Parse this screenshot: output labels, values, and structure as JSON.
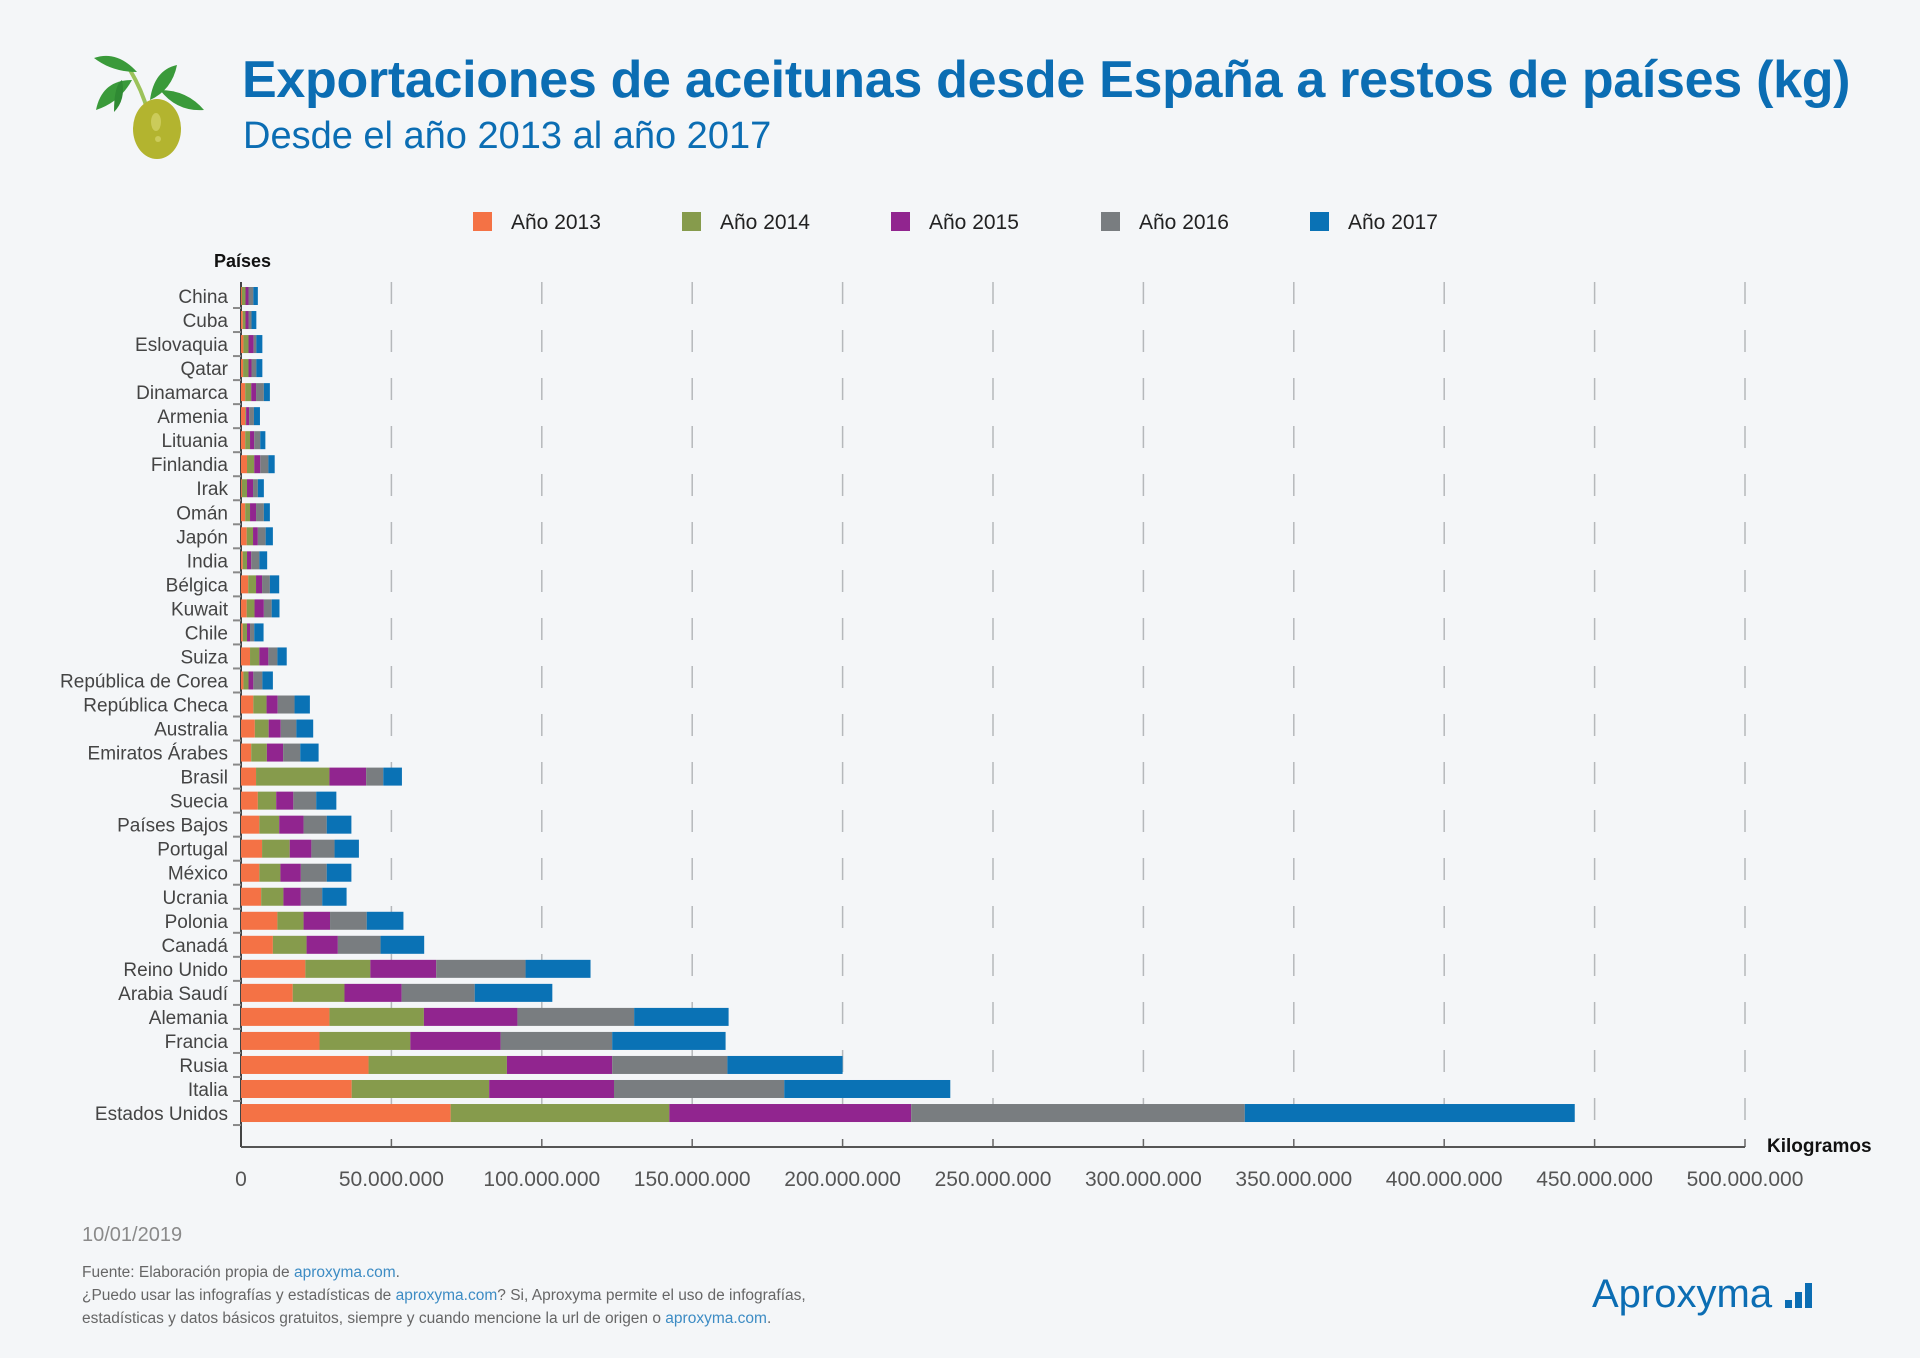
{
  "header": {
    "title": "Exportaciones de aceitunas desde España a restos de países (kg)",
    "subtitle": "Desde el año 2013 al año 2017"
  },
  "chart_data": {
    "type": "bar",
    "orientation": "horizontal",
    "stacked": true,
    "ylabel": "Países",
    "xlabel": "Kilogramos",
    "xlim": [
      0,
      500000000
    ],
    "xticks": [
      0,
      50000000,
      100000000,
      150000000,
      200000000,
      250000000,
      300000000,
      350000000,
      400000000,
      450000000,
      500000000
    ],
    "xtick_labels": [
      "0",
      "50.000.000",
      "100.000.000",
      "150.000.000",
      "200.000.000",
      "250.000.000",
      "300.000.000",
      "350.000.000",
      "400.000.000",
      "450.000.000",
      "500.000.000"
    ],
    "grid": "vertical dashed",
    "legend_position": "top",
    "categories": [
      "China",
      "Cuba",
      "Eslovaquia",
      "Qatar",
      "Dinamarca",
      "Armenia",
      "Lituania",
      "Finlandia",
      "Irak",
      "Omán",
      "Japón",
      "India",
      "Bélgica",
      "Kuwait",
      "Chile",
      "Suiza",
      "República de Corea",
      "República Checa",
      "Australia",
      "Emiratos Árabes",
      "Brasil",
      "Suecia",
      "Países Bajos",
      "Portugal",
      "México",
      "Ucrania",
      "Polonia",
      "Canadá",
      "Reino Unido",
      "Arabia Saudí",
      "Alemania",
      "Francia",
      "Rusia",
      "Italia",
      "Estados Unidos"
    ],
    "series": [
      {
        "name": "Año 2013",
        "color": "#f47245",
        "values": [
          300000,
          600000,
          800000,
          700000,
          1400000,
          1400000,
          1400000,
          2000000,
          300000,
          1400000,
          1900000,
          600000,
          2400000,
          1900000,
          600000,
          3000000,
          800000,
          4100000,
          4600000,
          3400000,
          5000000,
          5600000,
          6100000,
          7000000,
          6100000,
          6700000,
          12100000,
          10600000,
          21400000,
          17200000,
          29400000,
          26100000,
          42400000,
          36800000,
          69700000
        ]
      },
      {
        "name": "Año 2014",
        "color": "#869b4c",
        "values": [
          1200000,
          900000,
          1700000,
          1800000,
          2000000,
          300000,
          1600000,
          2400000,
          1700000,
          1600000,
          2100000,
          1400000,
          2600000,
          2600000,
          1400000,
          3100000,
          1700000,
          4400000,
          4600000,
          5200000,
          24400000,
          6100000,
          6600000,
          9200000,
          7000000,
          7400000,
          8700000,
          11200000,
          21600000,
          17200000,
          31400000,
          30200000,
          46000000,
          45700000,
          72700000
        ]
      },
      {
        "name": "Año 2015",
        "color": "#91258f",
        "values": [
          1000000,
          1000000,
          1700000,
          1000000,
          1600000,
          1000000,
          1400000,
          2000000,
          2000000,
          2000000,
          1600000,
          1400000,
          2000000,
          3100000,
          1000000,
          3000000,
          1600000,
          3700000,
          4000000,
          5400000,
          12200000,
          5700000,
          8100000,
          7200000,
          6800000,
          5800000,
          8800000,
          10400000,
          21900000,
          19000000,
          31100000,
          30000000,
          35000000,
          41500000,
          80400000
        ]
      },
      {
        "name": "Año 2016",
        "color": "#797d80",
        "values": [
          1600000,
          1000000,
          900000,
          1600000,
          2600000,
          1600000,
          2000000,
          2700000,
          1600000,
          2600000,
          2600000,
          2700000,
          2600000,
          2600000,
          1400000,
          3000000,
          3000000,
          5600000,
          5200000,
          5700000,
          5700000,
          7600000,
          7700000,
          7700000,
          8600000,
          7100000,
          12200000,
          14200000,
          29700000,
          24300000,
          38800000,
          37100000,
          38300000,
          56600000,
          110900000
        ]
      },
      {
        "name": "Año 2017",
        "color": "#0a72b5",
        "values": [
          1500000,
          1600000,
          2000000,
          2000000,
          2000000,
          2000000,
          1700000,
          2100000,
          2000000,
          2000000,
          2400000,
          2600000,
          3100000,
          2600000,
          3100000,
          3100000,
          3500000,
          5100000,
          5600000,
          6100000,
          6200000,
          6700000,
          8200000,
          8100000,
          8200000,
          8100000,
          12200000,
          14500000,
          21600000,
          25800000,
          31400000,
          37700000,
          38300000,
          55200000,
          109700000
        ]
      }
    ]
  },
  "footer": {
    "date": "10/01/2019",
    "source_prefix": "Fuente: Elaboración propia de ",
    "source_link": "aproxyma.com",
    "source_suffix": ".",
    "line2_prefix": "¿Puedo usar las infografías y estadísticas de ",
    "line2_link": "aproxyma.com",
    "line2_suffix": "? Si, Aproxyma permite el uso de infografías,",
    "line3_prefix": "estadísticas y datos básicos gratuitos, siempre y cuando mencione la url de origen o ",
    "line3_link": "aproxyma.com",
    "line3_suffix": ".",
    "brand": "Aproxyma",
    "brand_icon": "bar-chart-icon"
  },
  "colors": {
    "brand": "#0b6db3",
    "olive": "#b3b42f",
    "leaf": "#3a9a3a"
  }
}
